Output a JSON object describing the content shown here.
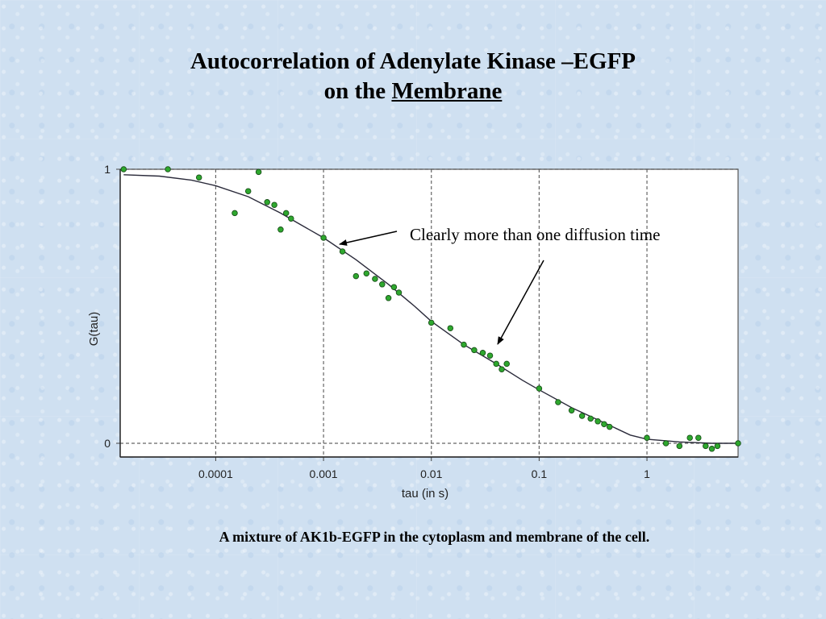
{
  "slide": {
    "title_line1": "Autocorrelation of Adenylate Kinase –EGFP",
    "title_line2_prefix": "on the ",
    "title_line2_underlined": "Membrane",
    "caption": "A mixture of AK1b-EGFP in the cytoplasm and membrane of the cell.",
    "annotation": "Clearly more than one diffusion time"
  },
  "chart_data": {
    "type": "scatter",
    "xlabel": "tau (in s)",
    "ylabel": "G(tau)",
    "x_scale": "log",
    "xlim": [
      1.3e-05,
      7.0
    ],
    "ylim": [
      0,
      1
    ],
    "grid": true,
    "x_ticks": [
      {
        "value": 0.0001,
        "label": "0.0001"
      },
      {
        "value": 0.001,
        "label": "0.001"
      },
      {
        "value": 0.01,
        "label": "0.01"
      },
      {
        "value": 0.1,
        "label": "0.1"
      },
      {
        "value": 1,
        "label": "1"
      }
    ],
    "y_ticks": [
      {
        "value": 0,
        "label": "0"
      },
      {
        "value": 1,
        "label": "1"
      }
    ],
    "series": [
      {
        "kind": "points",
        "color": "#2ea82e",
        "edge_color": "#1a4f1a",
        "x": [
          1.4e-05,
          3.6e-05,
          7e-05,
          0.00015,
          0.0002,
          0.00025,
          0.0003,
          0.00035,
          0.0004,
          0.00045,
          0.0005,
          0.001,
          0.0015,
          0.002,
          0.0025,
          0.003,
          0.0035,
          0.004,
          0.0045,
          0.005,
          0.01,
          0.015,
          0.02,
          0.025,
          0.03,
          0.035,
          0.04,
          0.045,
          0.05,
          0.1,
          0.15,
          0.2,
          0.25,
          0.3,
          0.35,
          0.4,
          0.45,
          1.0,
          1.5,
          2.0,
          2.5,
          3.0,
          3.5,
          4.0,
          4.5,
          7.0
        ],
        "y": [
          1.0,
          1.0,
          0.97,
          0.84,
          0.92,
          0.99,
          0.88,
          0.87,
          0.78,
          0.84,
          0.82,
          0.75,
          0.7,
          0.61,
          0.62,
          0.6,
          0.58,
          0.53,
          0.57,
          0.55,
          0.44,
          0.42,
          0.36,
          0.34,
          0.33,
          0.32,
          0.29,
          0.27,
          0.29,
          0.2,
          0.15,
          0.12,
          0.1,
          0.09,
          0.08,
          0.07,
          0.06,
          0.02,
          0.0,
          -0.01,
          0.02,
          0.02,
          -0.01,
          -0.02,
          -0.01,
          0.0
        ]
      },
      {
        "kind": "fit-line",
        "color": "#2a2a3a",
        "x": [
          1.4e-05,
          3e-05,
          6e-05,
          0.0001,
          0.0002,
          0.0004,
          0.0006,
          0.001,
          0.002,
          0.004,
          0.007,
          0.01,
          0.02,
          0.04,
          0.07,
          0.1,
          0.2,
          0.4,
          0.7,
          1.0,
          2.0,
          4.0,
          7.0
        ],
        "y": [
          0.98,
          0.975,
          0.96,
          0.94,
          0.9,
          0.84,
          0.8,
          0.75,
          0.67,
          0.58,
          0.5,
          0.445,
          0.36,
          0.29,
          0.23,
          0.195,
          0.13,
          0.075,
          0.03,
          0.015,
          0.005,
          0.0,
          0.0
        ]
      }
    ]
  }
}
